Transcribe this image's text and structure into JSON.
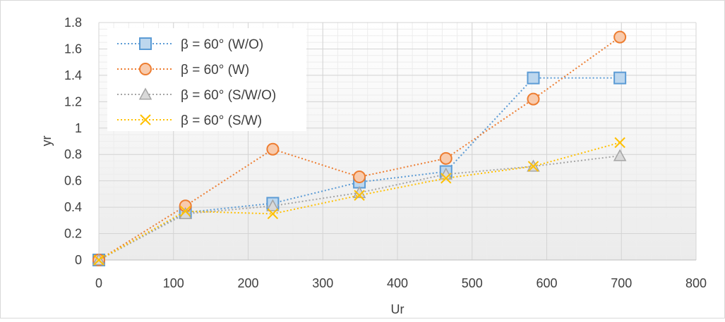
{
  "chart_data": {
    "type": "line",
    "xlabel": "Ur",
    "ylabel": "yr",
    "xlim": [
      0,
      800
    ],
    "ylim": [
      0,
      1.8
    ],
    "xticks": [
      "0",
      "100",
      "200",
      "300",
      "400",
      "500",
      "600",
      "700",
      "800"
    ],
    "yticks": [
      "0",
      "0.2",
      "0.4",
      "0.6",
      "0.8",
      "1",
      "1.2",
      "1.4",
      "1.6",
      "1.8"
    ],
    "grid": true,
    "legend_position": "top-left",
    "series": [
      {
        "name": "β = 60° (W/O)",
        "marker": "square",
        "color": "#5b9bd5",
        "fill": "#bdd7ee",
        "x": [
          0,
          116,
          233,
          349,
          465,
          582,
          698
        ],
        "y": [
          0,
          0.36,
          0.43,
          0.59,
          0.67,
          1.38,
          1.38
        ]
      },
      {
        "name": "β = 60° (W)",
        "marker": "circle",
        "color": "#ed7d31",
        "fill": "#f8cbad",
        "x": [
          0,
          116,
          233,
          349,
          465,
          582,
          698
        ],
        "y": [
          0,
          0.41,
          0.84,
          0.63,
          0.77,
          1.22,
          1.69
        ]
      },
      {
        "name": "β = 60° (S/W/O)",
        "marker": "triangle",
        "color": "#a5a5a5",
        "fill": "#d9d9d9",
        "x": [
          0,
          116,
          233,
          349,
          465,
          582,
          698
        ],
        "y": [
          0,
          0.35,
          0.41,
          0.51,
          0.65,
          0.71,
          0.79
        ]
      },
      {
        "name": "β = 60° (S/W)",
        "marker": "x",
        "color": "#ffc000",
        "fill": "#ffc000",
        "x": [
          0,
          116,
          233,
          349,
          465,
          582,
          698
        ],
        "y": [
          0,
          0.37,
          0.35,
          0.49,
          0.62,
          0.71,
          0.89
        ]
      }
    ]
  }
}
